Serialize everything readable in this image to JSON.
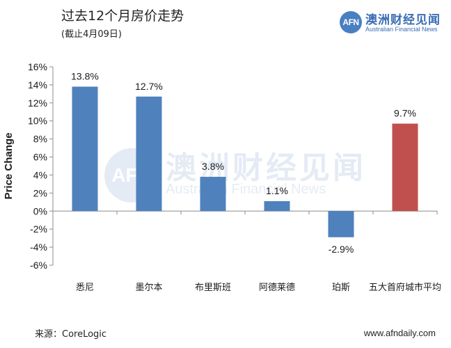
{
  "header": {
    "title": "过去12个月房价走势",
    "subtitle": "(截止4月09日)"
  },
  "logo": {
    "mark": "AFN",
    "name_cn": "澳洲财经见闻",
    "name_en": "Australian Financial News"
  },
  "footer": {
    "source": "来源：CoreLogic",
    "website": "www.afndaily.com"
  },
  "colors": {
    "bar_default": "#4f81bd",
    "bar_highlight": "#c0504d",
    "brand": "#3a6db5"
  },
  "chart_data": {
    "type": "bar",
    "title": "过去12个月房价走势",
    "subtitle": "(截止4月09日)",
    "xlabel": "",
    "ylabel": "Price Change",
    "ylim": [
      -6,
      16
    ],
    "ytick_step": 2,
    "yticks": [
      "-6%",
      "-4%",
      "-2%",
      "0%",
      "2%",
      "4%",
      "6%",
      "8%",
      "10%",
      "12%",
      "14%",
      "16%"
    ],
    "categories": [
      "悉尼",
      "墨尔本",
      "布里斯班",
      "阿德莱德",
      "珀斯",
      "五大首府城市平均"
    ],
    "values": [
      13.8,
      12.7,
      3.8,
      1.1,
      -2.9,
      9.7
    ],
    "data_labels": [
      "13.8%",
      "12.7%",
      "3.8%",
      "1.1%",
      "-2.9%",
      "9.7%"
    ],
    "highlight_index": 5,
    "grid": false,
    "legend": "none"
  }
}
